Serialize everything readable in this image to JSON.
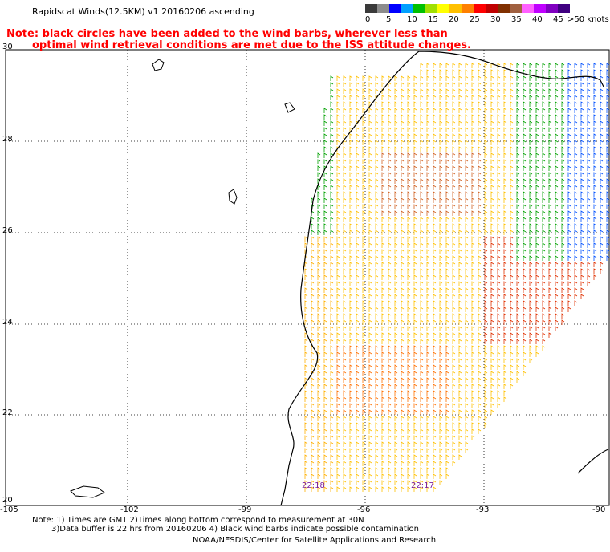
{
  "header": {
    "title": "Rapidscat Winds(12.5KM) v1 20160206 ascending",
    "note_line1": "Note: black circles have been added to the wind barbs, wherever less than",
    "note_line2": "optimal wind retrieval conditions are met due to the ISS attitude changes."
  },
  "legend": {
    "colors": [
      "#3a3a3a",
      "#8c8c8c",
      "#0000ff",
      "#00a0ff",
      "#00c000",
      "#a0e000",
      "#ffff00",
      "#ffc000",
      "#ff8000",
      "#ff0000",
      "#c00000",
      "#803000",
      "#a06040",
      "#ff60ff",
      "#c000ff",
      "#8000c0",
      "#400080"
    ],
    "labels": [
      "0",
      "5",
      "10",
      "15",
      "20",
      "25",
      "30",
      "35",
      "40",
      "45",
      ">50 knots"
    ]
  },
  "axes": {
    "lat_labels": [
      "30",
      "28",
      "26",
      "24",
      "22",
      "20"
    ],
    "lon_labels": [
      "-105",
      "-102",
      "-99",
      "-96",
      "-93",
      "-90"
    ]
  },
  "times": [
    "22:18",
    "22:17"
  ],
  "footer": {
    "line1": "Note: 1) Times are GMT 2)Times along bottom correspond to measurement at 30N",
    "line2": "3)Data buffer is 22 hrs from 20160206 4) Black wind barbs indicate possible contamination",
    "line3": "NOAA/NESDIS/Center for Satellite Applications and Research"
  }
}
